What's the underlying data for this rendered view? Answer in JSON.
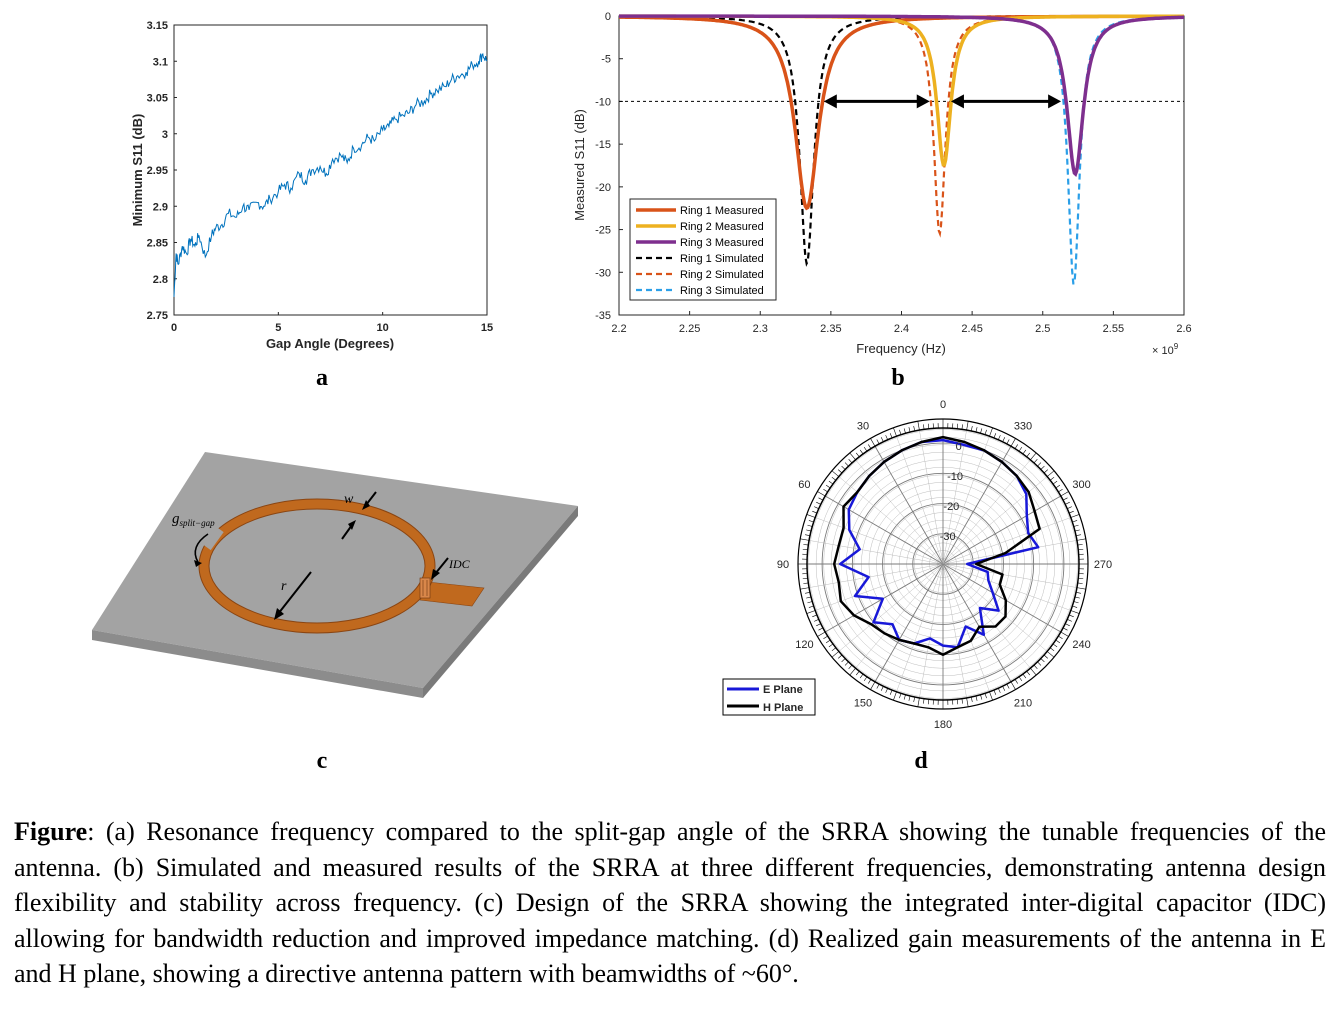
{
  "colors": {
    "ring1": "#d95319",
    "ring2": "#edb120",
    "ring3": "#7e2f8e",
    "sim1": "#000000",
    "sim2": "#d95319",
    "sim3": "#2b9fe8",
    "eplane": "#1818d8",
    "hplane": "#000000",
    "substrate_top": "#a3a3a3",
    "copper": "#c0691e"
  },
  "panels": {
    "a": {
      "letter": "a"
    },
    "b": {
      "letter": "b"
    },
    "c": {
      "letter": "c"
    },
    "d": {
      "letter": "d"
    }
  },
  "chart_data": [
    {
      "id": "a",
      "type": "line",
      "xlabel": "Gap Angle (Degrees)",
      "ylabel": "Minimum S11 (dB)",
      "xlim": [
        0,
        15
      ],
      "ylim": [
        2.75,
        3.15
      ],
      "xticks": [
        "0",
        "5",
        "10",
        "15"
      ],
      "yticks": [
        "2.75",
        "2.8",
        "2.85",
        "2.9",
        "2.95",
        "3",
        "3.05",
        "3.1",
        "3.15"
      ],
      "series": [
        {
          "name": "Minimum S11",
          "color": "#0072bd",
          "x": [
            0,
            0.1,
            0.2,
            0.4,
            0.6,
            0.8,
            1.0,
            1.2,
            1.5,
            1.8,
            2.0,
            2.3,
            2.6,
            3.0,
            3.3,
            3.6,
            4.0,
            4.3,
            4.6,
            5.0,
            5.3,
            5.6,
            6.0,
            6.3,
            6.6,
            7.0,
            7.3,
            7.6,
            8.0,
            8.3,
            8.6,
            9.0,
            9.3,
            9.6,
            10.0,
            10.3,
            10.6,
            11.0,
            11.3,
            11.6,
            12.0,
            12.3,
            12.6,
            13.0,
            13.3,
            13.6,
            14.0,
            14.3,
            14.6,
            14.8,
            15.0
          ],
          "y": [
            2.775,
            2.835,
            2.82,
            2.845,
            2.835,
            2.855,
            2.845,
            2.86,
            2.83,
            2.86,
            2.87,
            2.875,
            2.89,
            2.885,
            2.9,
            2.895,
            2.905,
            2.9,
            2.91,
            2.92,
            2.93,
            2.925,
            2.945,
            2.935,
            2.95,
            2.955,
            2.945,
            2.965,
            2.97,
            2.96,
            2.98,
            2.985,
            2.995,
            2.99,
            3.005,
            3.01,
            3.02,
            3.025,
            3.03,
            3.04,
            3.045,
            3.055,
            3.06,
            3.065,
            3.075,
            3.08,
            3.085,
            3.095,
            3.1,
            3.11,
            3.1
          ]
        }
      ]
    },
    {
      "id": "b",
      "type": "line",
      "xlabel": "Frequency (Hz)",
      "ylabel": "Measured S11 (dB)",
      "exponent_label": "× 10",
      "exponent_power": "9",
      "xlim": [
        2.2,
        2.6
      ],
      "ylim": [
        -35,
        0
      ],
      "xticks": [
        "2.2",
        "2.25",
        "2.3",
        "2.35",
        "2.4",
        "2.45",
        "2.5",
        "2.55",
        "2.6"
      ],
      "yticks": [
        "0",
        "-5",
        "-10",
        "-15",
        "-20",
        "-25",
        "-30",
        "-35"
      ],
      "threshold": -10,
      "series": [
        {
          "name": "Ring 1 Measured",
          "style": "solid",
          "f0": 2.333,
          "depth": -22.5,
          "width": 0.01
        },
        {
          "name": "Ring 2 Measured",
          "style": "solid",
          "f0": 2.43,
          "depth": -17.5,
          "width": 0.006
        },
        {
          "name": "Ring 3 Measured",
          "style": "solid",
          "f0": 2.523,
          "depth": -18.5,
          "width": 0.007
        },
        {
          "name": "Ring 1 Simulated",
          "style": "dashed",
          "f0": 2.333,
          "depth": -29.0,
          "width": 0.006
        },
        {
          "name": "Ring 2 Simulated",
          "style": "dashed",
          "f0": 2.427,
          "depth": -25.5,
          "width": 0.005
        },
        {
          "name": "Ring 3 Simulated",
          "style": "dashed",
          "f0": 2.522,
          "depth": -31.5,
          "width": 0.005
        }
      ],
      "arrows": [
        [
          2.345,
          2.42
        ],
        [
          2.435,
          2.513
        ]
      ]
    },
    {
      "id": "d",
      "type": "polar",
      "angle_labels": [
        "0",
        "30",
        "60",
        "90",
        "120",
        "150",
        "180",
        "210",
        "240",
        "270",
        "300",
        "330"
      ],
      "radial_labels": [
        "0",
        "-10",
        "-20",
        "-30"
      ],
      "rlim": [
        -40,
        5
      ],
      "series": [
        {
          "name": "E Plane",
          "angles": [
            0,
            10,
            20,
            30,
            40,
            50,
            60,
            70,
            80,
            90,
            100,
            110,
            120,
            130,
            140,
            150,
            160,
            170,
            180,
            190,
            200,
            210,
            220,
            230,
            240,
            250,
            260,
            270,
            280,
            290,
            300,
            310,
            320,
            330,
            340,
            350,
            360
          ],
          "gains": [
            1,
            1,
            0,
            -1,
            -2,
            -3,
            -4,
            -7,
            -12,
            -6,
            -15,
            -9,
            -17,
            -10,
            -14,
            -11,
            -12,
            -15,
            -13,
            -12,
            -18,
            -13,
            -21,
            -16,
            -21,
            -24,
            -25,
            -32,
            -8,
            -10,
            -8,
            -4,
            -2,
            -1,
            0,
            0,
            1
          ]
        },
        {
          "name": "H Plane",
          "angles": [
            0,
            10,
            20,
            30,
            40,
            50,
            60,
            70,
            80,
            90,
            100,
            110,
            120,
            130,
            140,
            150,
            160,
            170,
            180,
            190,
            200,
            210,
            220,
            230,
            240,
            250,
            260,
            270,
            280,
            290,
            300,
            310,
            320,
            330,
            340,
            350,
            360
          ],
          "gains": [
            2,
            1,
            0,
            -1,
            -2,
            -3,
            -2,
            -5,
            -5,
            -4,
            -5,
            -4,
            -6,
            -9,
            -10,
            -11,
            -12,
            -12,
            -10,
            -12,
            -13,
            -16,
            -13,
            -13,
            -16,
            -20,
            -20,
            -29,
            -19,
            -6,
            -5,
            -3,
            -2,
            -1,
            0,
            1,
            2
          ]
        }
      ]
    }
  ],
  "diagram": {
    "labels": {
      "split_gap_main": "g",
      "split_gap_sub": "split−gap",
      "width": "w",
      "radius": "r",
      "idc": "IDC"
    }
  },
  "caption": {
    "lead": "Figure",
    "text": ": (a) Resonance frequency compared to the split-gap angle of the SRRA showing the tunable frequencies of the antenna. (b) Simulated and measured results of the SRRA at three different frequencies, demonstrating antenna design flexibility and stability across frequency. (c) Design of the SRRA showing the integrated inter-digital capacitor (IDC) allowing for bandwidth reduction and improved impedance matching. (d) Realized gain measurements of the antenna in E and H plane, showing a directive antenna pattern with beamwidths of ~60°."
  }
}
